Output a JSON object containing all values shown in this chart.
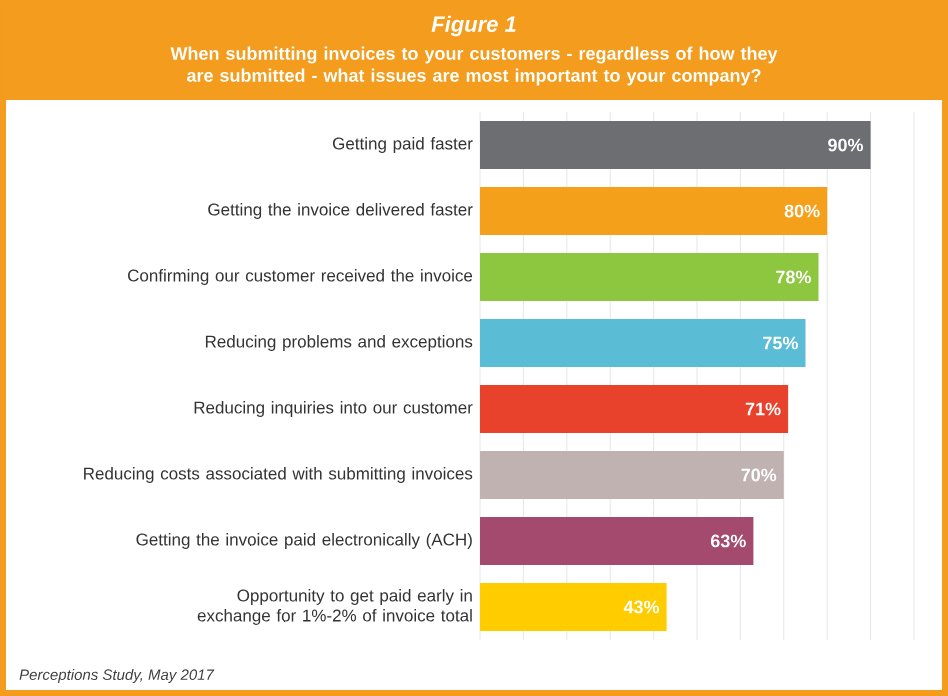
{
  "chart_data": {
    "type": "bar",
    "orientation": "horizontal",
    "title": "Figure 1",
    "subtitle": "When submitting invoices to your customers - regardless of how they are submitted - what issues are most important to your company?",
    "categories": [
      "Getting paid faster",
      "Getting the invoice delivered faster",
      "Confirming our customer received the invoice",
      "Reducing problems and exceptions",
      "Reducing inquiries into our customer",
      "Reducing costs associated with submitting invoices",
      "Getting the invoice paid electronically (ACH)",
      "Opportunity to get paid early in exchange for 1%-2% of invoice total"
    ],
    "values": [
      90,
      80,
      78,
      75,
      71,
      70,
      63,
      43
    ],
    "value_labels": [
      "90%",
      "80%",
      "78%",
      "75%",
      "71%",
      "70%",
      "63%",
      "43%"
    ],
    "colors": [
      "#6d6e71",
      "#f5a01a",
      "#8dc63f",
      "#5bbcd6",
      "#e8412c",
      "#c0b2b1",
      "#a34a6e",
      "#ffcc00"
    ],
    "xlim": [
      0,
      100
    ],
    "xticks": [
      {
        "value": 0,
        "label": null
      },
      {
        "value": 10,
        "label": null
      },
      {
        "value": 20,
        "label": null
      },
      {
        "value": 30,
        "label": null
      },
      {
        "value": 40,
        "label": null
      },
      {
        "value": 50,
        "label": null
      },
      {
        "value": 60,
        "label": null
      },
      {
        "value": 70,
        "label": null
      },
      {
        "value": 80,
        "label": null
      },
      {
        "value": 90,
        "label": null
      },
      {
        "value": 100,
        "label": null
      }
    ],
    "grid": "x",
    "tick_labels": "y",
    "annotations": [
      "Perceptions Study, May 2017"
    ]
  }
}
